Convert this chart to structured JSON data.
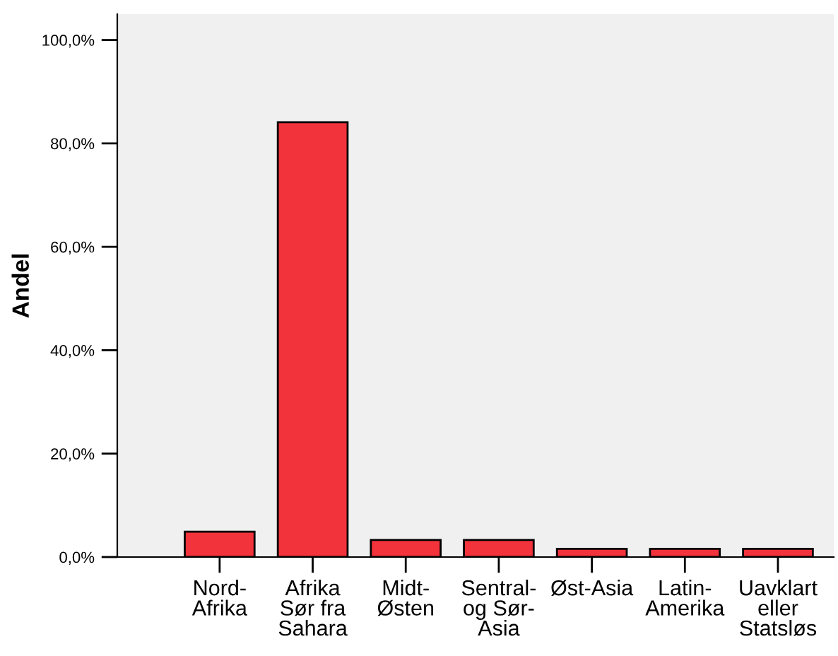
{
  "chart_data": {
    "type": "bar",
    "ylabel": "Andel",
    "categories": [
      "Nord-\nAfrika",
      "Afrika\nSør fra\nSahara",
      "Midt-\nØsten",
      "Sentral-\nog Sør-\nAsia",
      "Øst-Asia",
      "Latin-\nAmerika",
      "Uavklart\neller\nStatsløs"
    ],
    "values": [
      4.9,
      84.1,
      3.3,
      3.3,
      1.6,
      1.6,
      1.6
    ],
    "color": "#f2333c",
    "ylim": [
      0,
      105
    ],
    "yticks": [
      {
        "value": 0,
        "label": "0,0%"
      },
      {
        "value": 20,
        "label": "20,0%"
      },
      {
        "value": 40,
        "label": "40,0%"
      },
      {
        "value": 60,
        "label": "60,0%"
      },
      {
        "value": 80,
        "label": "80,0%"
      },
      {
        "value": 100,
        "label": "100,0%"
      }
    ],
    "grid": false
  }
}
